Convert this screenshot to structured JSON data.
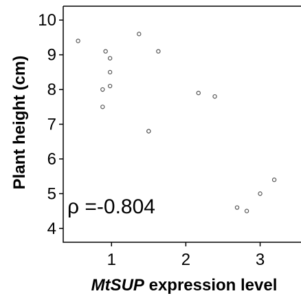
{
  "chart_data": {
    "type": "scatter",
    "ylabel": "Plant height (cm)",
    "xlabel_italic": "MtSUP",
    "xlabel_rest": " expression level",
    "annotation": "ρ =-0.804",
    "xlim": [
      0.35,
      3.55
    ],
    "ylim": [
      3.6,
      10.4
    ],
    "x_ticks": [
      1,
      2,
      3
    ],
    "y_ticks": [
      4,
      5,
      6,
      7,
      8,
      9,
      10
    ],
    "x_tick_labels": [
      "1",
      "2",
      "3"
    ],
    "y_tick_labels": [
      "4",
      "5",
      "6",
      "7",
      "8",
      "9",
      "10"
    ],
    "grid": false,
    "series": [
      {
        "x": [
          0.55,
          0.92,
          0.98,
          0.98,
          0.98,
          0.88,
          0.88,
          1.37,
          1.5,
          1.5,
          1.63,
          2.17,
          2.39,
          2.69,
          2.82,
          3.0,
          3.19
        ],
        "y": [
          9.4,
          9.1,
          8.9,
          8.5,
          8.1,
          8.0,
          7.5,
          9.6,
          6.8,
          6.8,
          9.1,
          7.9,
          7.8,
          4.6,
          4.5,
          5.0,
          5.4
        ]
      }
    ],
    "point_color": "#555555"
  }
}
